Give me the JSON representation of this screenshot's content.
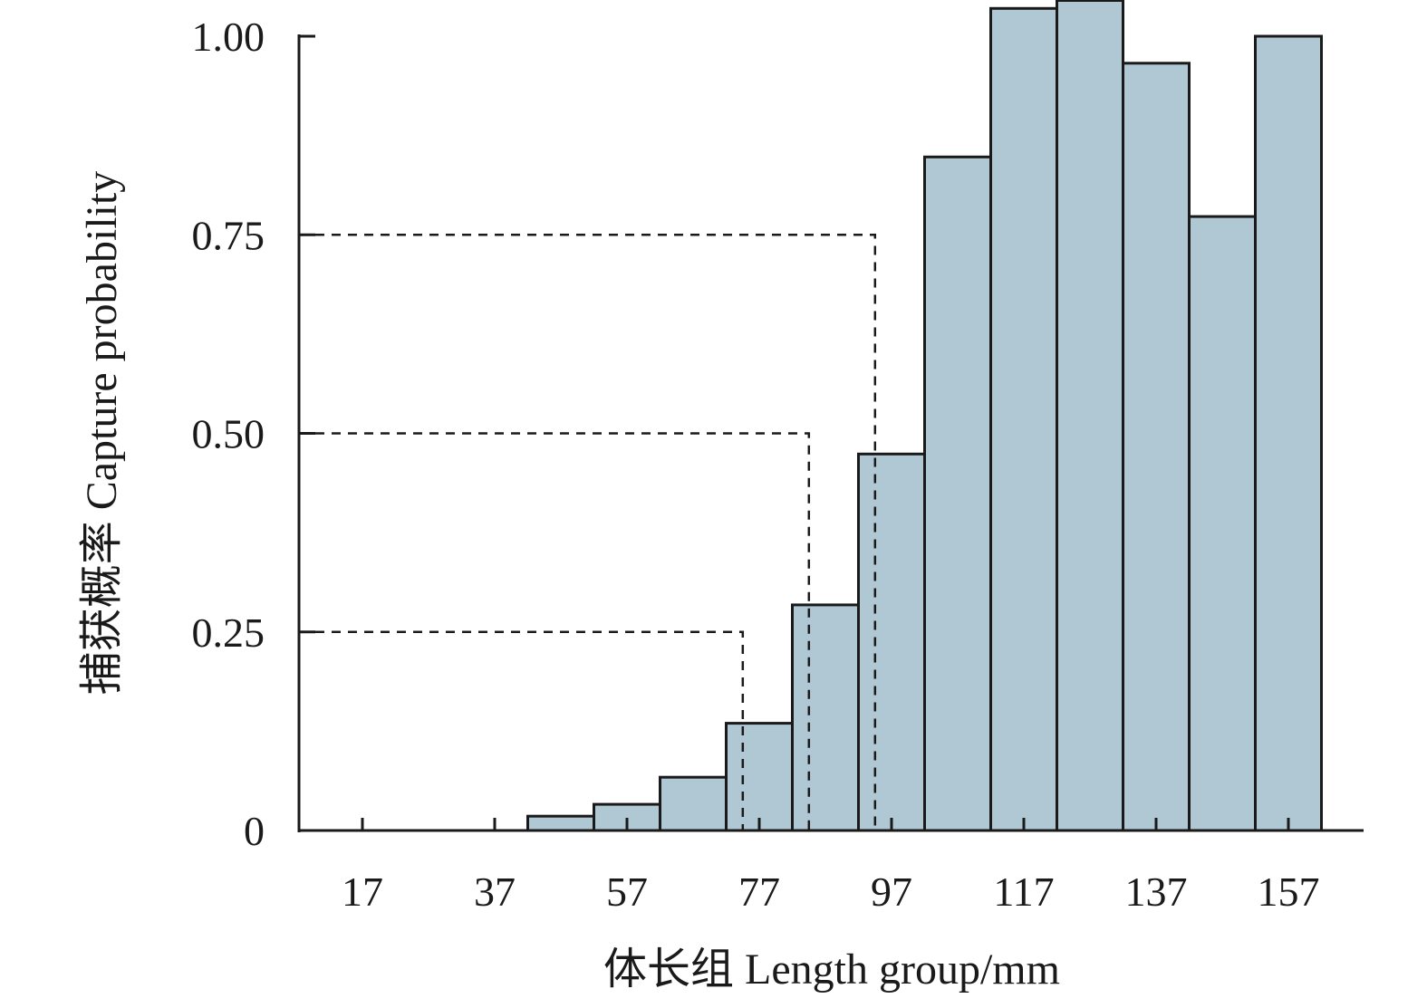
{
  "chart_data": {
    "type": "bar",
    "title": "",
    "xlabel": "体长组 Length group/mm",
    "ylabel": "捕获概率 Capture probability",
    "x_tick_labels": [
      "17",
      "37",
      "57",
      "77",
      "97",
      "117",
      "137",
      "157"
    ],
    "y_tick_labels": [
      "0",
      "0.25",
      "0.50",
      "0.75",
      "1.00"
    ],
    "y_ticks": [
      0,
      0.25,
      0.5,
      0.75,
      1.0
    ],
    "x_ticks": [
      17,
      37,
      57,
      77,
      97,
      117,
      137,
      157
    ],
    "xlim": [
      7.5,
      172
    ],
    "ylim": [
      0,
      1.05
    ],
    "bin_width": 10,
    "bars": [
      {
        "x": 47,
        "value": 0.018
      },
      {
        "x": 57,
        "value": 0.033
      },
      {
        "x": 67,
        "value": 0.067
      },
      {
        "x": 77,
        "value": 0.135
      },
      {
        "x": 87,
        "value": 0.284
      },
      {
        "x": 97,
        "value": 0.474
      },
      {
        "x": 107,
        "value": 0.848
      },
      {
        "x": 117,
        "value": 1.035
      },
      {
        "x": 127,
        "value": 1.045
      },
      {
        "x": 137,
        "value": 0.966
      },
      {
        "x": 147,
        "value": 0.773
      },
      {
        "x": 157,
        "value": 1.0
      }
    ],
    "guides": [
      {
        "p": 0.25,
        "x": 74.5
      },
      {
        "p": 0.5,
        "x": 84.5
      },
      {
        "p": 0.75,
        "x": 94.5
      }
    ],
    "bar_color": "#b0c8d4",
    "edge_color": "#1a1a1a",
    "grid": false,
    "legend": "none"
  }
}
